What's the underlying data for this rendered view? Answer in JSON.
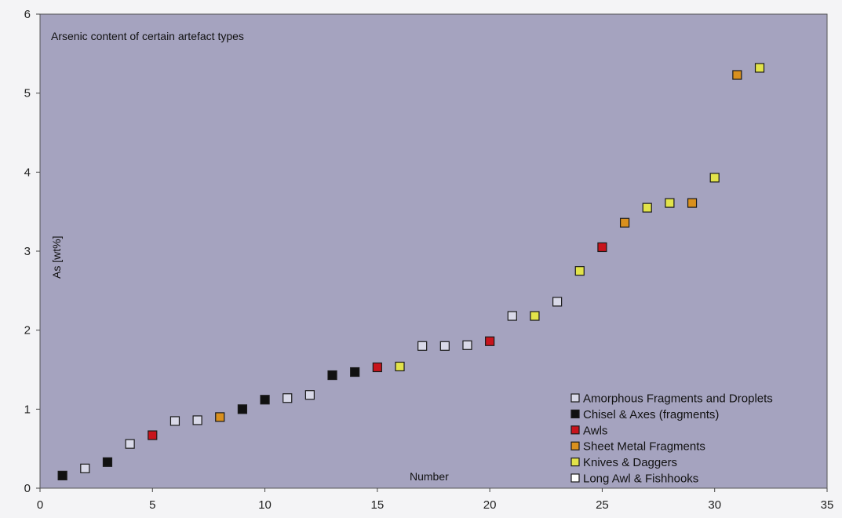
{
  "chart_data": {
    "type": "scatter",
    "title": "Arsenic content of certain artefact types",
    "xlabel": "Number",
    "ylabel": "As [wt%]",
    "xlim": [
      0,
      35
    ],
    "ylim": [
      0,
      6
    ],
    "xticks": [
      "0",
      "5",
      "10",
      "15",
      "20",
      "25",
      "30",
      "35"
    ],
    "yticks": [
      "0",
      "1",
      "2",
      "3",
      "4",
      "5",
      "6"
    ],
    "grid": false,
    "legend_position": "bottom-right",
    "series": [
      {
        "name": "Amorphous Fragments and Droplets",
        "color": "#d9d9e8",
        "points": [
          {
            "x": 2,
            "y": 0.25
          },
          {
            "x": 4,
            "y": 0.56
          },
          {
            "x": 6,
            "y": 0.85
          },
          {
            "x": 7,
            "y": 0.86
          },
          {
            "x": 11,
            "y": 1.14
          },
          {
            "x": 12,
            "y": 1.18
          },
          {
            "x": 17,
            "y": 1.8
          },
          {
            "x": 18,
            "y": 1.8
          },
          {
            "x": 19,
            "y": 1.81
          },
          {
            "x": 21,
            "y": 2.18
          },
          {
            "x": 23,
            "y": 2.36
          }
        ]
      },
      {
        "name": "Chisel & Axes (fragments)",
        "color": "#111111",
        "points": [
          {
            "x": 1,
            "y": 0.16
          },
          {
            "x": 3,
            "y": 0.33
          },
          {
            "x": 9,
            "y": 1.0
          },
          {
            "x": 10,
            "y": 1.12
          },
          {
            "x": 13,
            "y": 1.43
          },
          {
            "x": 14,
            "y": 1.47
          }
        ]
      },
      {
        "name": "Awls",
        "color": "#c8141c",
        "points": [
          {
            "x": 5,
            "y": 0.67
          },
          {
            "x": 15,
            "y": 1.53
          },
          {
            "x": 20,
            "y": 1.86
          },
          {
            "x": 25,
            "y": 3.05
          }
        ]
      },
      {
        "name": "Sheet Metal Fragments",
        "color": "#d9901e",
        "points": [
          {
            "x": 8,
            "y": 0.9
          },
          {
            "x": 26,
            "y": 3.36
          },
          {
            "x": 29,
            "y": 3.61
          },
          {
            "x": 31,
            "y": 5.23
          }
        ]
      },
      {
        "name": "Knives & Daggers",
        "color": "#e2e34a",
        "points": [
          {
            "x": 16,
            "y": 1.54
          },
          {
            "x": 22,
            "y": 2.18
          },
          {
            "x": 24,
            "y": 2.75
          },
          {
            "x": 27,
            "y": 3.55
          },
          {
            "x": 28,
            "y": 3.61
          },
          {
            "x": 30,
            "y": 3.93
          },
          {
            "x": 32,
            "y": 5.32
          }
        ]
      },
      {
        "name": "Long Awl & Fishhooks",
        "color": "#ffffff",
        "points": []
      }
    ]
  }
}
